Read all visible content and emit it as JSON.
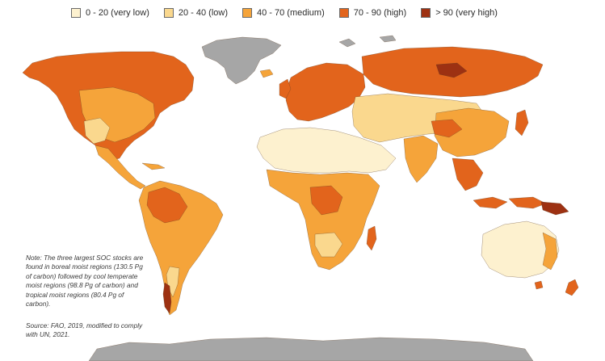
{
  "legend": [
    {
      "label": "0 - 20 (very low)",
      "color": "#fdf1cf"
    },
    {
      "label": "20 - 40 (low)",
      "color": "#fad88e"
    },
    {
      "label": "40 - 70 (medium)",
      "color": "#f5a43a"
    },
    {
      "label": "70 - 90 (high)",
      "color": "#e2641c"
    },
    {
      "label": "> 90 (very high)",
      "color": "#9d3112"
    }
  ],
  "no_data_color": "#a6a6a6",
  "note": "Note: The three largest SOC stocks are found in boreal moist regions (130.5 Pg of carbon) followed by cool temperate moist regions (98.8 Pg of carbon) and tropical moist regions (80.4 Pg of carbon).",
  "source": "Source: FAO, 2019, modified to comply with UN, 2021."
}
